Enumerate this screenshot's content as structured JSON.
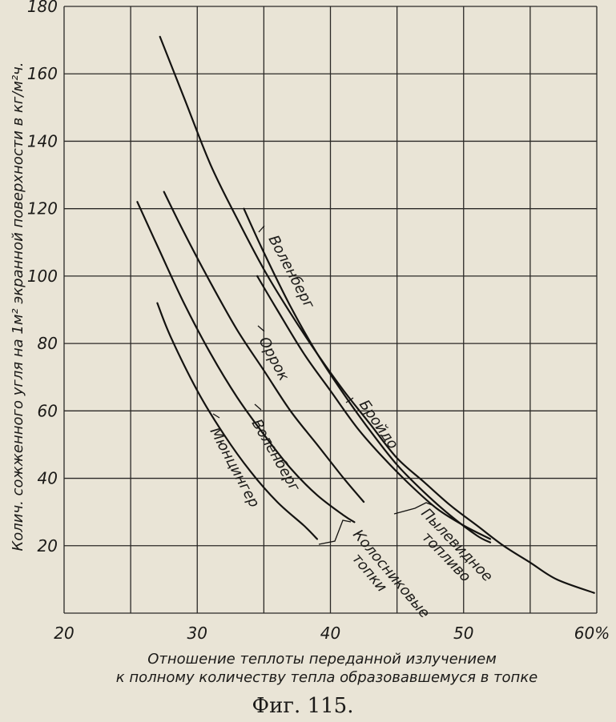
{
  "chart_data": {
    "type": "line",
    "xlabel_lines": [
      "Отношение  теплоты  переданной  излучением",
      "к  полному  количеству тепла образовавшемуся в топке"
    ],
    "ylabel": "Колич. сожженного угля на 1м² экранной поверхности в кг/м²ч.",
    "xlim": [
      20,
      60
    ],
    "ylim": [
      0,
      180
    ],
    "x_ticks": [
      "20",
      "30",
      "40",
      "50",
      "60%"
    ],
    "y_ticks": [
      "20",
      "40",
      "60",
      "80",
      "100",
      "120",
      "140",
      "160",
      "180"
    ],
    "grid": true,
    "series": [
      {
        "name": "Воленберг",
        "label_lines": [
          "Воленберг"
        ],
        "x": [
          27.2,
          29,
          31,
          33,
          35,
          37,
          39,
          41,
          43,
          45,
          47,
          49,
          51,
          53,
          55,
          57,
          59.8
        ],
        "y": [
          171,
          153,
          133,
          117,
          102,
          89,
          77,
          66,
          56,
          46,
          39,
          32,
          26,
          20,
          15,
          10,
          6
        ]
      },
      {
        "name": "Оррок",
        "label_lines": [
          "Оррок"
        ],
        "x": [
          27.5,
          29,
          31,
          33,
          35,
          37,
          39,
          41,
          42.5
        ],
        "y": [
          125,
          113,
          98,
          84,
          72,
          60,
          50,
          40,
          33
        ]
      },
      {
        "name": "Воленберг",
        "label_lines": [
          "Воленберг"
        ],
        "x": [
          25.5,
          27,
          29,
          31,
          33,
          35,
          37,
          39,
          41,
          41.8
        ],
        "y": [
          122,
          109,
          92,
          77,
          64,
          53,
          43,
          35,
          29,
          27
        ]
      },
      {
        "name": "Мюнцингер",
        "label_lines": [
          "Мюнцингер"
        ],
        "x": [
          27,
          28,
          30,
          32,
          34,
          36,
          38,
          39
        ],
        "y": [
          92,
          82,
          66,
          53,
          42,
          33,
          26,
          22
        ]
      },
      {
        "name": "Бройдо",
        "label_lines": [
          "Бройдо"
        ],
        "x": [
          33.5,
          35,
          37,
          39,
          41,
          43,
          45,
          47,
          49,
          51,
          52
        ],
        "y": [
          120,
          107,
          91,
          77,
          65,
          54,
          44,
          36,
          29,
          23,
          21
        ]
      },
      {
        "name": "",
        "label_lines": [],
        "x": [
          34.5,
          36,
          38,
          40,
          42,
          44,
          46,
          48,
          50,
          52
        ],
        "y": [
          100,
          90,
          77,
          66,
          55,
          46,
          38,
          31,
          26,
          22
        ]
      }
    ],
    "group_labels": [
      {
        "label_lines": [
          "Колосниковые",
          "топки"
        ]
      },
      {
        "label_lines": [
          "Пылевидное",
          "топливо"
        ]
      }
    ]
  },
  "caption": "Фиг. 115."
}
